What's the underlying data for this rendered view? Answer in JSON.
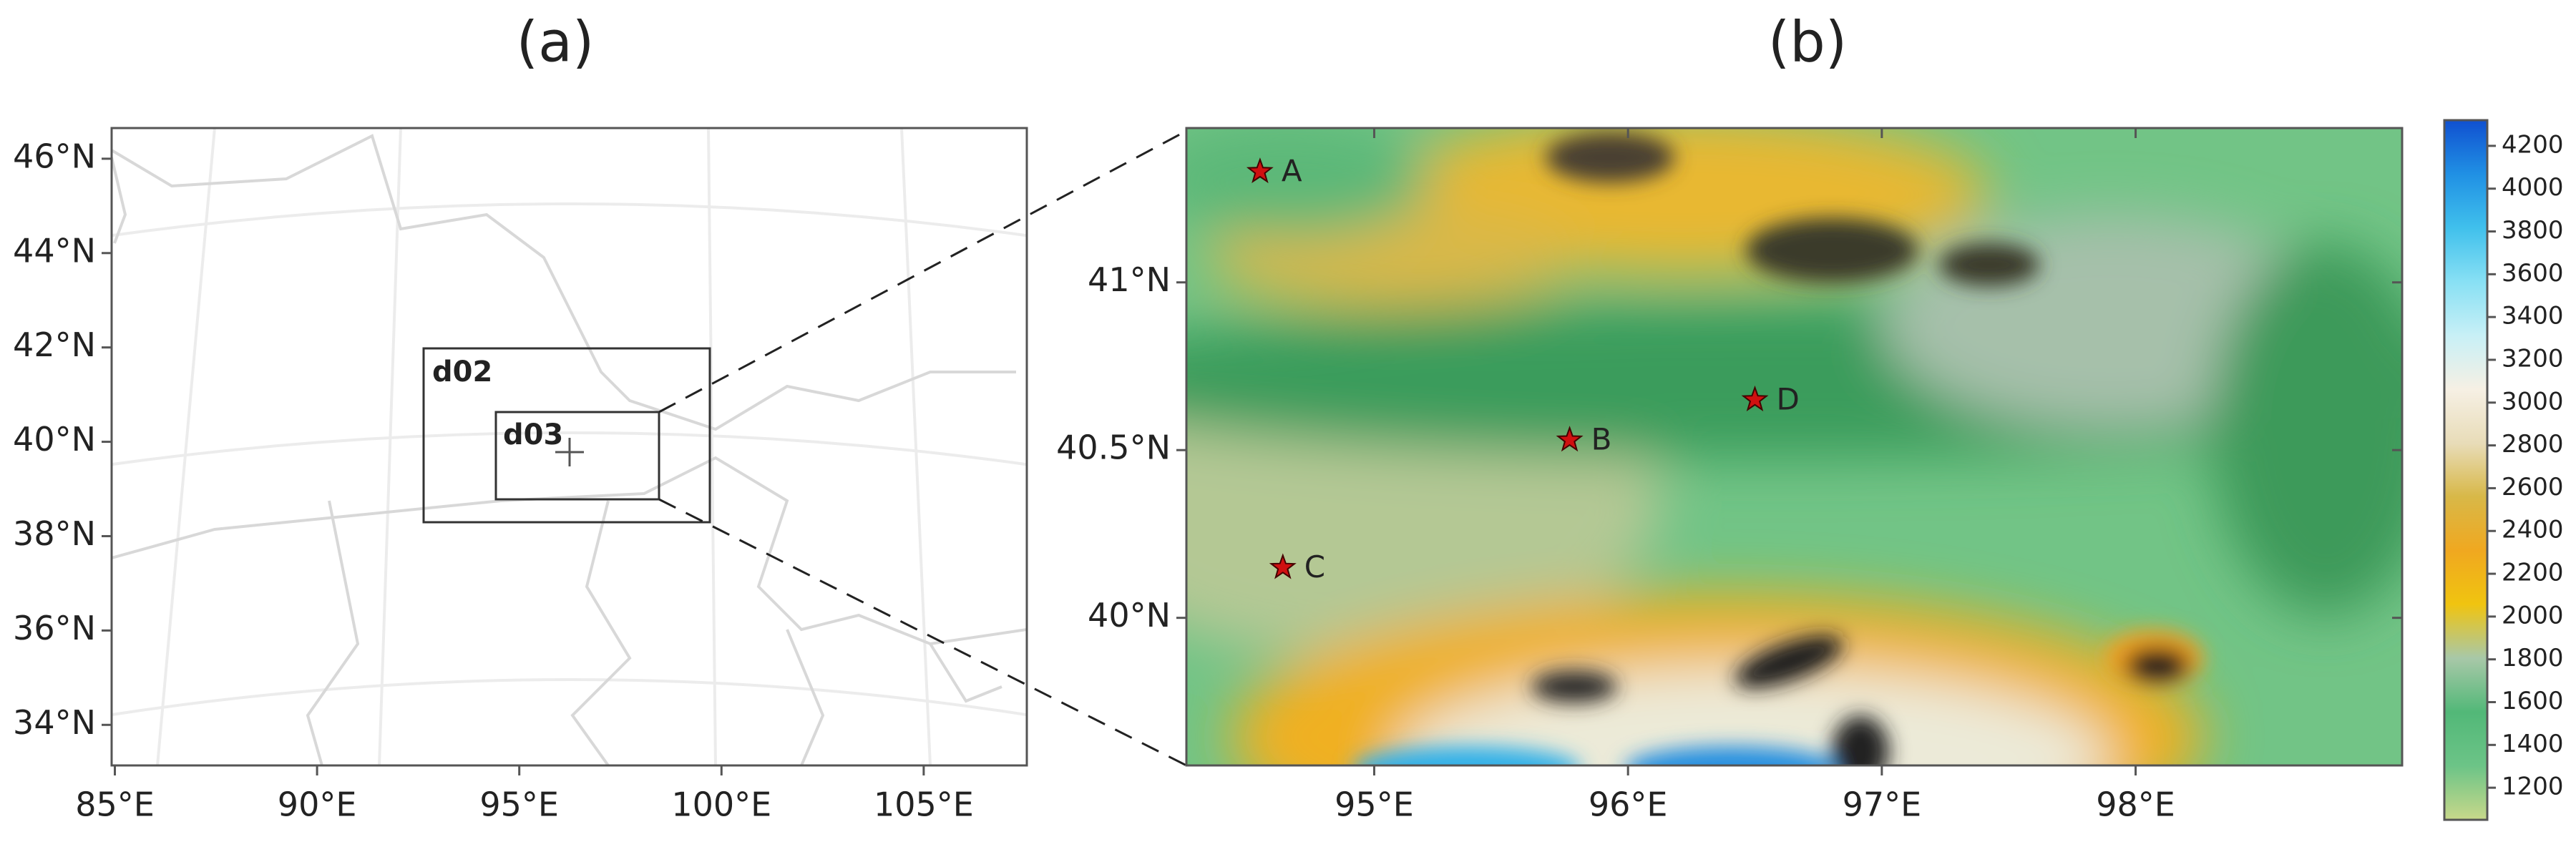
{
  "chart_data": [
    {
      "type": "map",
      "title": "(a)",
      "xlim": [
        84.92,
        107.55
      ],
      "ylim": [
        33.14,
        46.65
      ],
      "xticks": [
        {
          "value": 85,
          "label": "85°E"
        },
        {
          "value": 90,
          "label": "90°E"
        },
        {
          "value": 95,
          "label": "95°E"
        },
        {
          "value": 100,
          "label": "100°E"
        },
        {
          "value": 105,
          "label": "105°E"
        }
      ],
      "yticks": [
        {
          "value": 34,
          "label": "34°N"
        },
        {
          "value": 36,
          "label": "36°N"
        },
        {
          "value": 38,
          "label": "38°N"
        },
        {
          "value": 40,
          "label": "40°N"
        },
        {
          "value": 42,
          "label": "42°N"
        },
        {
          "value": 44,
          "label": "44°N"
        },
        {
          "value": 46,
          "label": "46°N"
        }
      ],
      "domains": [
        "d02",
        "d03"
      ]
    },
    {
      "type": "terrain",
      "title": "(b)",
      "xlim": [
        94.26,
        99.05
      ],
      "ylim": [
        39.56,
        41.46
      ],
      "xticks": [
        {
          "value": 95,
          "label": "95°E"
        },
        {
          "value": 96,
          "label": "96°E"
        },
        {
          "value": 97,
          "label": "97°E"
        },
        {
          "value": 98,
          "label": "98°E"
        }
      ],
      "yticks": [
        {
          "value": 40,
          "label": "40°N"
        },
        {
          "value": 40.5,
          "label": "40.5°N"
        },
        {
          "value": 41,
          "label": "41°N"
        }
      ],
      "stations": [
        {
          "label": "A",
          "lon": 94.55,
          "lat": 41.33
        },
        {
          "label": "B",
          "lon": 95.77,
          "lat": 40.53
        },
        {
          "label": "C",
          "lon": 94.64,
          "lat": 40.15
        },
        {
          "label": "D",
          "lon": 96.5,
          "lat": 40.65
        }
      ],
      "station_color": "#d01010",
      "colorbar": {
        "lim": [
          1050,
          4320
        ],
        "ticks": [
          1200,
          1400,
          1600,
          1800,
          2000,
          2200,
          2400,
          2600,
          2800,
          3000,
          3200,
          3400,
          3600,
          3800,
          4000,
          4200
        ],
        "colors": [
          "#c8d88a",
          "#6cc487",
          "#52b878",
          "#a8c8a8",
          "#f0c410",
          "#f0a820",
          "#d8b848",
          "#e8dcb8",
          "#f6f0e4",
          "#c8f0f6",
          "#88e0f4",
          "#40c0ec",
          "#2090e4",
          "#1050d0"
        ]
      }
    }
  ]
}
